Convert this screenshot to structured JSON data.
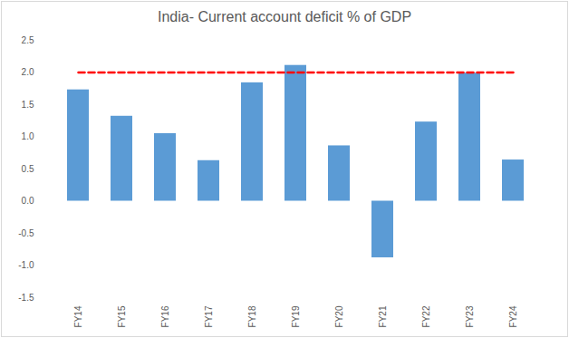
{
  "chart_data": {
    "type": "bar",
    "title": "India- Current account deficit % of GDP",
    "categories": [
      "FY14",
      "FY15",
      "FY16",
      "FY17",
      "FY18",
      "FY19",
      "FY20",
      "FY21",
      "FY22",
      "FY23",
      "FY24"
    ],
    "series": [
      {
        "type": "bar",
        "color": "#5b9bd5",
        "values": [
          1.73,
          1.32,
          1.05,
          0.63,
          1.84,
          2.11,
          0.86,
          -0.88,
          1.23,
          1.99,
          0.64
        ]
      },
      {
        "type": "line",
        "color": "#ff0000",
        "line_style": "dashed",
        "values": [
          2,
          2,
          2,
          2,
          2,
          2,
          2,
          2,
          2,
          2,
          2
        ]
      }
    ],
    "ylim": [
      -1.5,
      2.5
    ],
    "yticks": [
      -1.5,
      {
        "value": -1,
        "label": "-1.0"
      },
      -0.5,
      {
        "value": 0,
        "label": "0.0"
      },
      0.5,
      {
        "value": 1,
        "label": "1.0"
      },
      1.5,
      {
        "value": 2,
        "label": "2.0"
      },
      2.5
    ],
    "grid": false
  }
}
